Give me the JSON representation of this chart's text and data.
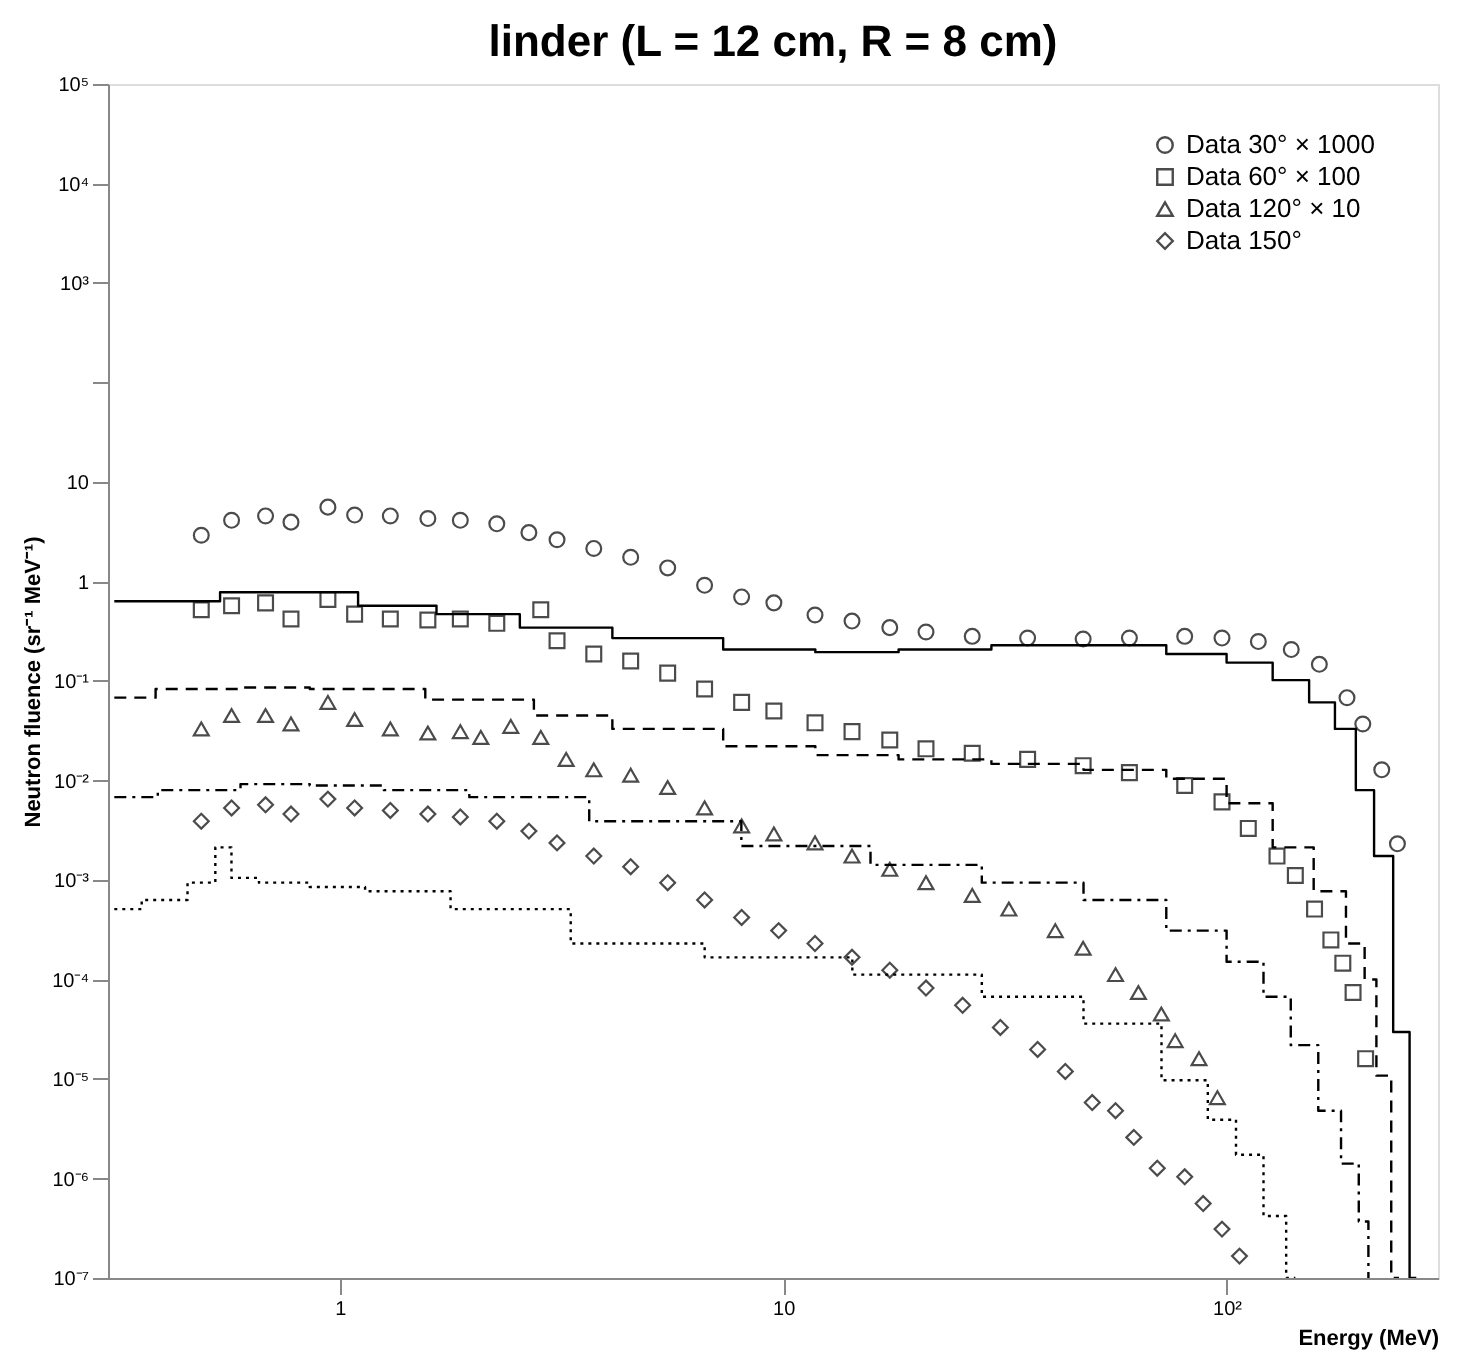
{
  "chart_data": {
    "type": "scatter",
    "title": "linder (L = 12 cm, R = 8 cm)",
    "xlabel": "Energy (MeV)",
    "ylabel": "Neutron fluence (sr⁻¹ MeV⁻¹)",
    "log": "xy",
    "xlim": [
      0.3,
      300
    ],
    "ylim": [
      1e-07,
      100000
    ],
    "xticks": [
      1,
      10,
      {
        "value": 100,
        "label": "10²"
      }
    ],
    "yticks": [
      {
        "value": 1e-07,
        "label": "10⁻⁷"
      },
      {
        "value": 1e-06,
        "label": "10⁻⁶"
      },
      {
        "value": 1e-05,
        "label": "10⁻⁵"
      },
      {
        "value": 0.0001,
        "label": "10⁻⁴"
      },
      {
        "value": 0.001,
        "label": "10⁻³"
      },
      {
        "value": 0.01,
        "label": "10⁻²"
      },
      {
        "value": 0.1,
        "label": "10⁻¹"
      },
      1,
      10,
      {
        "value": 100,
        "label": null
      },
      {
        "value": 1000,
        "label": "10³"
      },
      {
        "value": 10000,
        "label": "10⁴"
      },
      {
        "value": 100000,
        "label": "10⁵"
      }
    ],
    "grid": false,
    "legend": "top right",
    "series": [
      {
        "name": "Data   30° × 1000",
        "marker": "circle",
        "color": "#000000",
        "x": [
          0.487,
          0.57,
          0.68,
          0.776,
          0.94,
          1.08,
          1.3,
          1.58,
          1.87,
          2.26,
          2.67,
          3.09,
          3.74,
          4.53,
          5.49,
          6.65,
          8.06,
          9.53,
          11.8,
          14.3,
          17.4,
          21.0,
          26.7,
          35.6,
          47.5,
          60.4,
          80.5,
          97.7,
          118,
          140,
          162,
          187,
          203,
          224,
          243
        ],
        "values": [
          2.92,
          4.12,
          4.56,
          3.95,
          5.59,
          4.65,
          4.56,
          4.29,
          4.12,
          3.8,
          3.1,
          2.63,
          2.15,
          1.75,
          1.37,
          0.915,
          0.7,
          0.61,
          0.46,
          0.4,
          0.344,
          0.311,
          0.281,
          0.27,
          0.264,
          0.27,
          0.281,
          0.27,
          0.249,
          0.207,
          0.147,
          0.068,
          0.037,
          0.0128,
          0.00231
        ]
      },
      {
        "type": "step",
        "line_style": "solid",
        "color": "#000000",
        "x": [
          0.31,
          0.93,
          1.3,
          2.1,
          3.09,
          5.49,
          9.77,
          14.3,
          23.2,
          37.5,
          60.4,
          88.6,
          113,
          143,
          165,
          187,
          205,
          226,
          250,
          268
        ],
        "values": [
          0.634,
          0.78,
          0.57,
          0.47,
          0.344,
          0.27,
          0.207,
          0.195,
          0.207,
          0.229,
          0.229,
          0.187,
          0.153,
          0.102,
          0.061,
          0.033,
          0.008,
          0.00174,
          2.97e-05,
          1e-07
        ]
      },
      {
        "name": "Data   60° × 100",
        "marker": "square",
        "color": "#000000",
        "x": [
          0.487,
          0.57,
          0.68,
          0.776,
          0.94,
          1.08,
          1.3,
          1.58,
          1.87,
          2.26,
          2.84,
          3.09,
          3.74,
          4.53,
          5.49,
          6.65,
          8.06,
          9.53,
          11.8,
          14.3,
          17.4,
          21.0,
          26.7,
          35.6,
          47.5,
          60.4,
          80.5,
          97.7,
          112,
          130,
          143,
          158,
          172,
          183,
          193,
          206
        ],
        "values": [
          0.52,
          0.57,
          0.61,
          0.42,
          0.66,
          0.47,
          0.42,
          0.41,
          0.42,
          0.38,
          0.52,
          0.254,
          0.187,
          0.159,
          0.12,
          0.083,
          0.061,
          0.05,
          0.038,
          0.031,
          0.0255,
          0.0208,
          0.0188,
          0.0163,
          0.0141,
          0.012,
          0.0089,
          0.0061,
          0.0033,
          0.00174,
          0.00111,
          0.00051,
          0.00025,
          0.000146,
          7.4e-05,
          1.6e-05
        ]
      },
      {
        "type": "step",
        "line_style": "dashed",
        "color": "#000000",
        "x": [
          0.31,
          0.476,
          0.732,
          1,
          2.43,
          3.09,
          5.49,
          9.77,
          14.3,
          23.2,
          37.5,
          60.4,
          88.6,
          113,
          143,
          173,
          200,
          210,
          226,
          245
        ],
        "values": [
          0.068,
          0.083,
          0.086,
          0.083,
          0.065,
          0.045,
          0.033,
          0.0221,
          0.018,
          0.0163,
          0.0147,
          0.0128,
          0.0104,
          0.0059,
          0.00213,
          0.00077,
          0.00023,
          0.0001,
          1.08e-05,
          1e-07
        ]
      },
      {
        "name": "Data   120° × 10",
        "marker": "triangle",
        "color": "#000000",
        "x": [
          0.487,
          0.57,
          0.68,
          0.776,
          0.94,
          1.08,
          1.3,
          1.58,
          1.87,
          2.08,
          2.43,
          2.84,
          3.24,
          3.74,
          4.53,
          5.49,
          6.65,
          8.06,
          9.53,
          11.8,
          14.3,
          17.4,
          21.0,
          26.7,
          32.3,
          41.1,
          47.5,
          56.2,
          63.3,
          71.3,
          76.6,
          86.7,
          95.4
        ],
        "values": [
          0.033,
          0.045,
          0.045,
          0.037,
          0.061,
          0.041,
          0.033,
          0.03,
          0.031,
          0.0271,
          0.035,
          0.0271,
          0.0163,
          0.0128,
          0.0113,
          0.0085,
          0.0053,
          0.0035,
          0.0029,
          0.00236,
          0.00174,
          0.00128,
          0.00094,
          0.0007,
          0.00051,
          0.00031,
          0.000206,
          0.000112,
          7.4e-05,
          4.5e-05,
          2.43e-05,
          1.6e-05,
          6.5e-06
        ]
      },
      {
        "type": "step",
        "line_style": "dashdot",
        "color": "#000000",
        "x": [
          0.31,
          0.487,
          0.732,
          1,
          1.58,
          2.43,
          5.49,
          11.8,
          21.0,
          37.5,
          60.4,
          88.6,
          113,
          130,
          150,
          173,
          190,
          208,
          210
        ],
        "values": [
          0.0068,
          0.008,
          0.0092,
          0.0089,
          0.008,
          0.0068,
          0.0039,
          0.0022,
          0.00142,
          0.00094,
          0.00063,
          0.00031,
          0.000151,
          6.7e-05,
          2.19e-05,
          4.8e-06,
          1.41e-06,
          3.7e-07,
          1e-07
        ]
      },
      {
        "name": "Data   150°",
        "marker": "diamond",
        "color": "#000000",
        "x": [
          0.487,
          0.57,
          0.68,
          0.776,
          0.94,
          1.08,
          1.3,
          1.58,
          1.87,
          2.26,
          2.67,
          3.09,
          3.74,
          4.53,
          5.49,
          6.65,
          8.06,
          9.77,
          11.8,
          14.3,
          17.4,
          21.0,
          25.4,
          30.9,
          37.5,
          43.3,
          49.8,
          56.2,
          61.8,
          69.8,
          80.5,
          88.6,
          97.7,
          107
        ],
        "values": [
          0.0039,
          0.0053,
          0.0057,
          0.0046,
          0.0065,
          0.0053,
          0.005,
          0.0046,
          0.0043,
          0.0039,
          0.0031,
          0.00236,
          0.00174,
          0.00136,
          0.00094,
          0.00063,
          0.00042,
          0.00031,
          0.00023,
          0.000167,
          0.000124,
          8.2e-05,
          5.5e-05,
          3.3e-05,
          1.98e-05,
          1.19e-05,
          5.8e-06,
          4.8e-06,
          2.59e-06,
          1.27e-06,
          1.04e-06,
          5.6e-07,
          3.1e-07,
          1.66e-07
        ]
      },
      {
        "type": "step",
        "line_style": "dotted",
        "color": "#000000",
        "x": [
          0.31,
          0.412,
          0.499,
          0.55,
          0.59,
          0.732,
          1,
          1.3,
          2.43,
          4.53,
          9.77,
          21.0,
          37.5,
          60.4,
          84.3,
          97.7,
          113,
          130,
          143
        ],
        "values": [
          0.00051,
          0.00063,
          0.00094,
          0.00213,
          0.00105,
          0.00094,
          0.00085,
          0.00077,
          0.00051,
          0.00023,
          0.000167,
          0.000112,
          6.7e-05,
          3.6e-05,
          9.7e-06,
          3.9e-06,
          1.73e-06,
          4.2e-07,
          1e-07
        ]
      }
    ]
  }
}
